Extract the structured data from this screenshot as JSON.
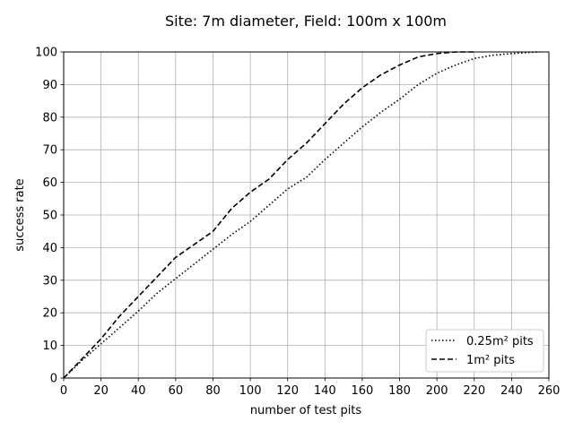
{
  "chart_data": {
    "type": "line",
    "title": "Site: 7m diameter, Field: 100m x 100m",
    "xlabel": "number of test pits",
    "ylabel": "success rate",
    "xlim": [
      0,
      260
    ],
    "ylim": [
      0,
      100
    ],
    "xticks": [
      0,
      20,
      40,
      60,
      80,
      100,
      120,
      140,
      160,
      180,
      200,
      220,
      240,
      260
    ],
    "yticks": [
      0,
      10,
      20,
      30,
      40,
      50,
      60,
      70,
      80,
      90,
      100
    ],
    "grid": true,
    "legend_position": "lower-right",
    "series": [
      {
        "name": "0.25m² pits",
        "style": "dotted",
        "color": "#000000",
        "x": [
          0,
          10,
          20,
          30,
          40,
          50,
          60,
          70,
          80,
          90,
          100,
          110,
          120,
          130,
          140,
          150,
          160,
          170,
          180,
          190,
          200,
          210,
          220,
          230,
          240,
          250,
          255
        ],
        "y": [
          0,
          5.5,
          10.5,
          15.5,
          20.5,
          26,
          30.5,
          35,
          39.5,
          44,
          48,
          53,
          58,
          61.5,
          67,
          72,
          77,
          81.5,
          85.5,
          90,
          93.5,
          96,
          98,
          99,
          99.5,
          99.9,
          100
        ]
      },
      {
        "name": "1m² pits",
        "style": "dashed",
        "color": "#000000",
        "x": [
          0,
          10,
          20,
          30,
          40,
          50,
          60,
          70,
          80,
          90,
          100,
          110,
          120,
          130,
          140,
          150,
          160,
          170,
          180,
          190,
          200,
          210,
          220
        ],
        "y": [
          0,
          6,
          12,
          19,
          25,
          31,
          37,
          41,
          45,
          52,
          57,
          61,
          67,
          72,
          78,
          84,
          89,
          93,
          96,
          98.5,
          99.5,
          100,
          100
        ]
      }
    ]
  }
}
